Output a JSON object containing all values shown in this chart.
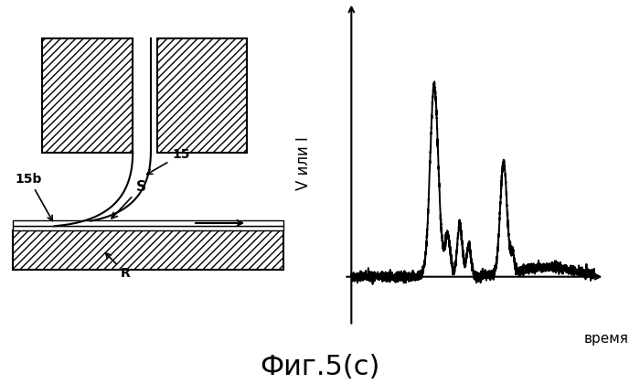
{
  "fig_label": "Фиг.5(c)",
  "ylabel": "V или I",
  "xlabel": "время",
  "bg_color": "#ffffff",
  "line_color": "#000000",
  "label_15b": "15b",
  "label_15": "15",
  "label_S": "S",
  "label_R": "R"
}
